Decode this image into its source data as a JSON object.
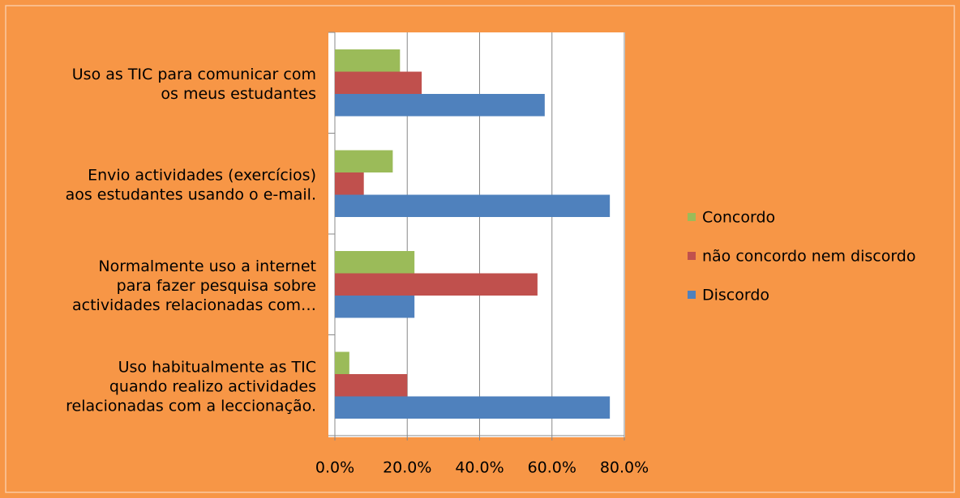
{
  "chart_data": {
    "type": "hbar",
    "categories": [
      [
        "Uso as TIC para comunicar com",
        "os meus estudantes"
      ],
      [
        "Envio actividades (exercícios)",
        "aos estudantes usando o e-mail."
      ],
      [
        "Normalmente uso a internet",
        "para fazer pesquisa sobre",
        "actividades relacionadas com…"
      ],
      [
        "Uso habitualmente as TIC",
        "quando realizo actividades",
        "relacionadas com a leccionação."
      ]
    ],
    "series": [
      {
        "name": "Concordo",
        "color": "#9bbb59",
        "values": [
          18,
          16,
          22,
          4
        ]
      },
      {
        "name": "não concordo nem discordo",
        "color": "#c0504d",
        "values": [
          24,
          8,
          56,
          20
        ]
      },
      {
        "name": "Discordo",
        "color": "#4f81bd",
        "values": [
          58,
          76,
          22,
          76
        ]
      }
    ],
    "xlim": [
      0,
      80
    ],
    "xticks": [
      {
        "value": 0,
        "label": "0.0%"
      },
      {
        "value": 20,
        "label": "20.0%"
      },
      {
        "value": 40,
        "label": "40.0%"
      },
      {
        "value": 60,
        "label": "60.0%"
      },
      {
        "value": 80,
        "label": "80.0%"
      }
    ],
    "grid": true,
    "legend": "right"
  }
}
